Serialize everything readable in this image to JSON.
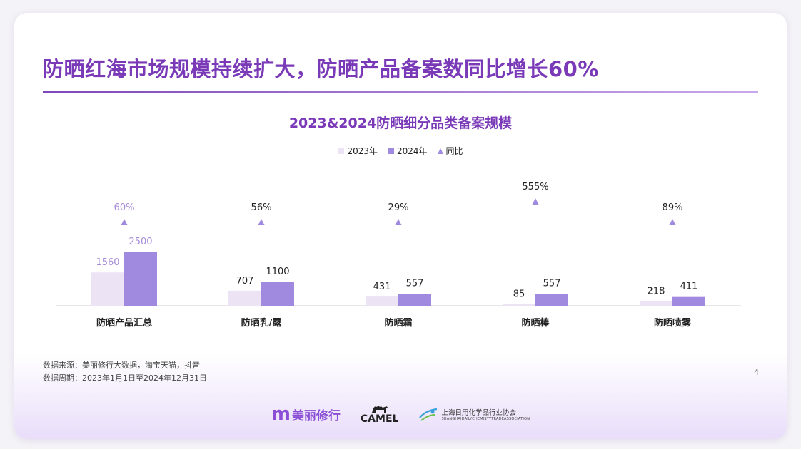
{
  "title": "防晒红海市场规模持续扩大，防晒产品备案数同比增长60%",
  "page_number": "4",
  "footnote": {
    "source": "数据来源：美丽修行大数据，淘宝天猫，抖音",
    "period": "数据周期：2023年1月1日至2024年12月31日"
  },
  "logos": {
    "mlxh_mark": "m",
    "mlxh_text": "美丽修行",
    "camel": "CAMEL",
    "association_cn": "上海日用化学品行业协会",
    "association_en": "SHANGHAIDAILYCHEMISTYTRADEASSOCIATION"
  },
  "colors": {
    "accent": "#7a3ab8",
    "bar_2023": "#ece4f5",
    "bar_2024": "#a08ae0",
    "triangle": "#a08ae0",
    "highlight_label": "#a58ad6"
  },
  "legend": {
    "y2023": "2023年",
    "y2024": "2024年",
    "yoy": "同比"
  },
  "chart_data": {
    "type": "bar",
    "title": "2023&2024防晒细分品类备案规模",
    "categories": [
      "防晒产品汇总",
      "防晒乳/露",
      "防晒霜",
      "防晒棒",
      "防晒喷雾"
    ],
    "series": [
      {
        "name": "2023年",
        "values": [
          1560,
          707,
          431,
          85,
          218
        ]
      },
      {
        "name": "2024年",
        "values": [
          2500,
          1100,
          557,
          557,
          411
        ]
      }
    ],
    "yoy": {
      "name": "同比",
      "values": [
        60,
        56,
        29,
        555,
        89
      ],
      "labels": [
        "60%",
        "56%",
        "29%",
        "555%",
        "89%"
      ]
    },
    "highlight_index": 0,
    "legend_position": "top-center",
    "grid": false
  }
}
